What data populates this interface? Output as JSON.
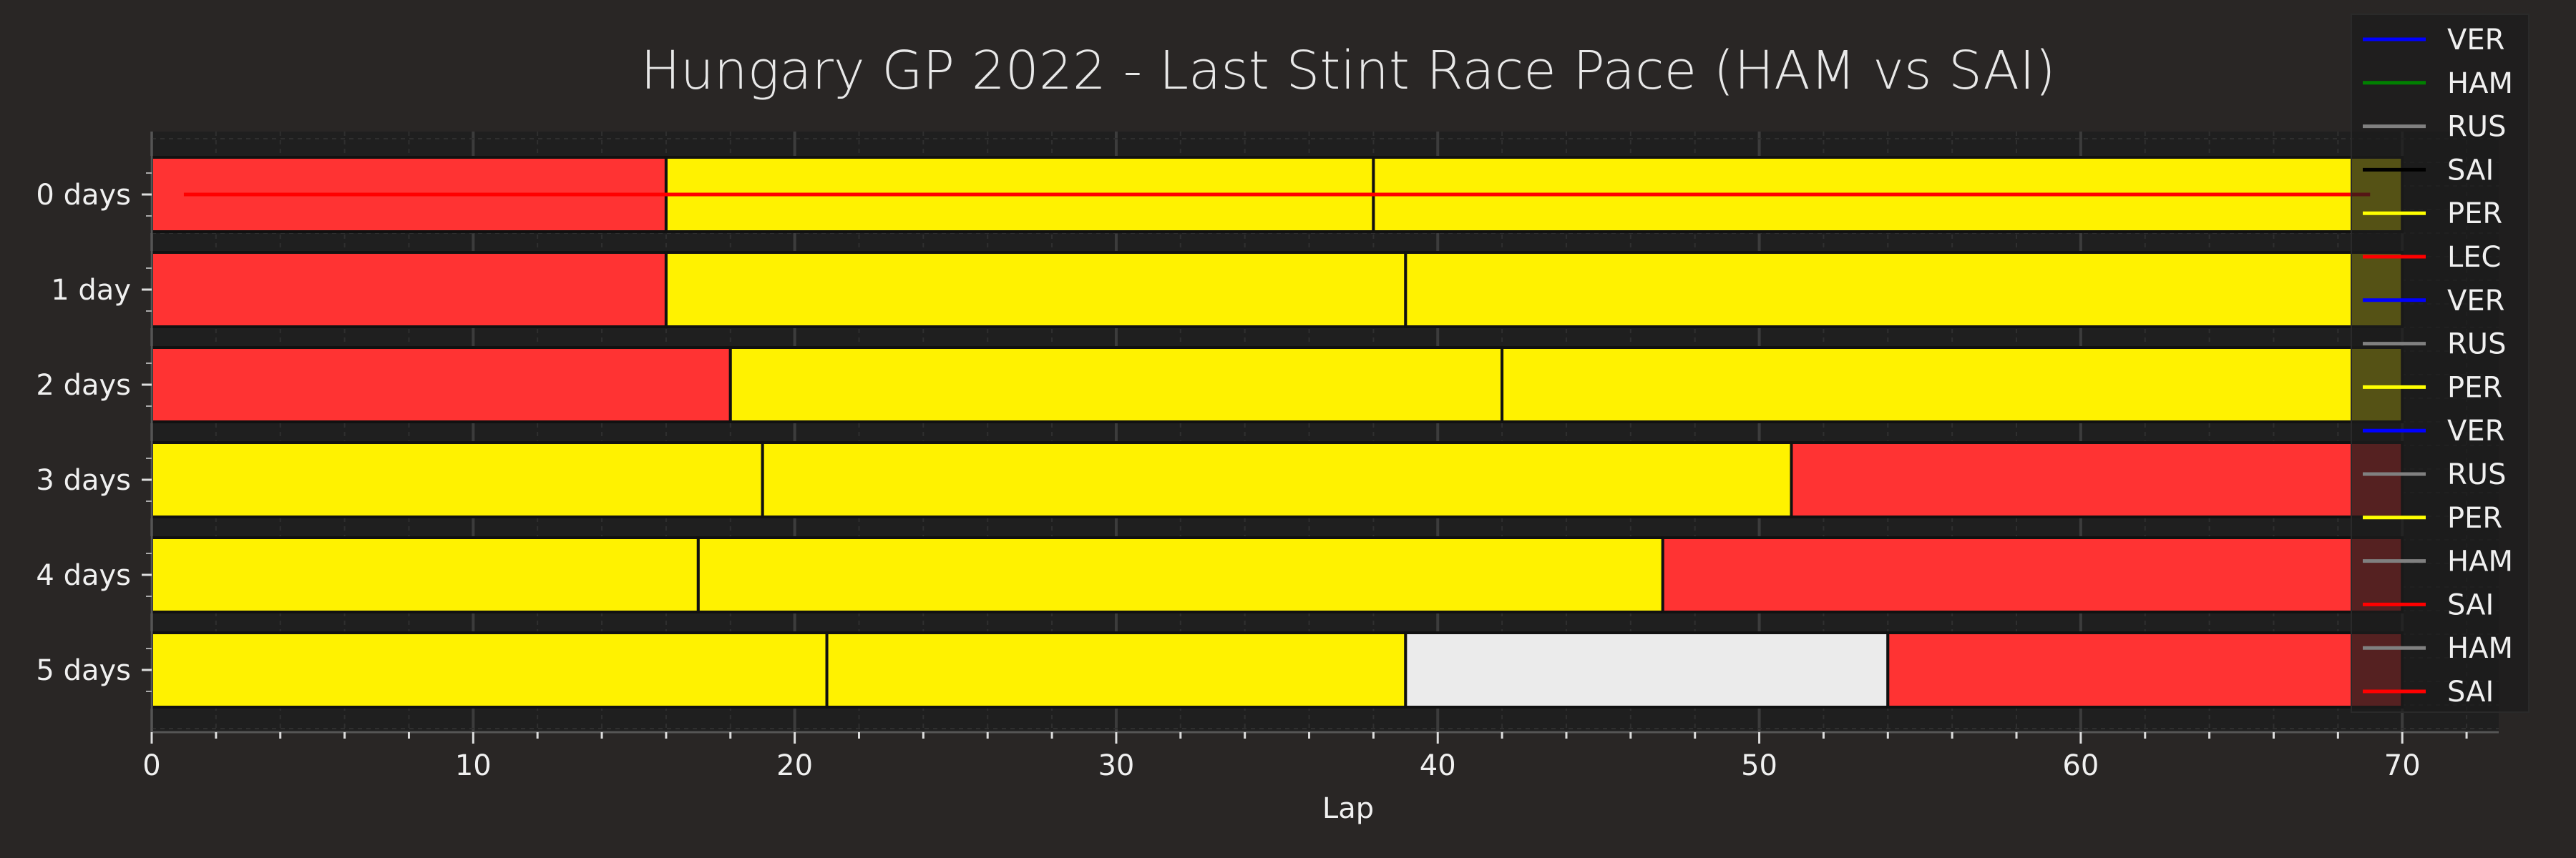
{
  "chart_data": {
    "type": "bar",
    "orientation": "horizontal-stacked",
    "title": "Hungary GP 2022 - Last Stint Race Pace (HAM vs SAI)",
    "xlabel": "Lap",
    "ylabel": "",
    "xlim": [
      0,
      73
    ],
    "xticks": [
      0,
      10,
      20,
      30,
      40,
      50,
      60,
      70
    ],
    "grid": true,
    "legend_position": "right",
    "categories": [
      "0 days",
      "1 day",
      "2 days",
      "3 days",
      "4 days",
      "5 days"
    ],
    "compound_colors": {
      "red": "#ff3333",
      "yellow": "#fff200",
      "white": "#ebebeb"
    },
    "stints": [
      [
        {
          "start": 0,
          "end": 16,
          "compound": "red"
        },
        {
          "start": 16,
          "end": 38,
          "compound": "yellow"
        },
        {
          "start": 38,
          "end": 70,
          "compound": "yellow"
        }
      ],
      [
        {
          "start": 0,
          "end": 16,
          "compound": "red"
        },
        {
          "start": 16,
          "end": 39,
          "compound": "yellow"
        },
        {
          "start": 39,
          "end": 70,
          "compound": "yellow"
        }
      ],
      [
        {
          "start": 0,
          "end": 18,
          "compound": "red"
        },
        {
          "start": 18,
          "end": 42,
          "compound": "yellow"
        },
        {
          "start": 42,
          "end": 70,
          "compound": "yellow"
        }
      ],
      [
        {
          "start": 0,
          "end": 19,
          "compound": "yellow"
        },
        {
          "start": 19,
          "end": 51,
          "compound": "yellow"
        },
        {
          "start": 51,
          "end": 70,
          "compound": "red"
        }
      ],
      [
        {
          "start": 0,
          "end": 17,
          "compound": "yellow"
        },
        {
          "start": 17,
          "end": 47,
          "compound": "yellow"
        },
        {
          "start": 47,
          "end": 70,
          "compound": "red"
        }
      ],
      [
        {
          "start": 0,
          "end": 21,
          "compound": "yellow"
        },
        {
          "start": 21,
          "end": 39,
          "compound": "yellow"
        },
        {
          "start": 39,
          "end": 54,
          "compound": "white"
        },
        {
          "start": 54,
          "end": 70,
          "compound": "red"
        }
      ]
    ],
    "line_overlay": {
      "row": 0,
      "x_start": 1,
      "x_end": 69,
      "color": "#ff0000"
    },
    "legend": [
      {
        "label": "VER",
        "color": "#0000ff"
      },
      {
        "label": "HAM",
        "color": "#008000"
      },
      {
        "label": "RUS",
        "color": "#808080"
      },
      {
        "label": "SAI",
        "color": "#000000"
      },
      {
        "label": "PER",
        "color": "#ffff00"
      },
      {
        "label": "LEC",
        "color": "#ff0000"
      },
      {
        "label": "VER",
        "color": "#0000ff"
      },
      {
        "label": "RUS",
        "color": "#808080"
      },
      {
        "label": "PER",
        "color": "#ffff00"
      },
      {
        "label": "VER",
        "color": "#0000ff"
      },
      {
        "label": "RUS",
        "color": "#808080"
      },
      {
        "label": "PER",
        "color": "#ffff00"
      },
      {
        "label": "HAM",
        "color": "#808080"
      },
      {
        "label": "SAI",
        "color": "#ff0000"
      },
      {
        "label": "HAM",
        "color": "#808080"
      },
      {
        "label": "SAI",
        "color": "#ff0000"
      }
    ]
  }
}
